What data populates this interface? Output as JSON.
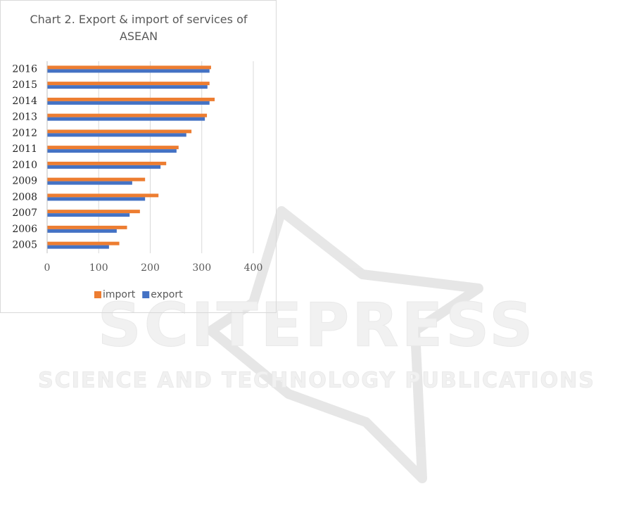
{
  "chart_data": {
    "type": "barh",
    "title": "Chart 2. Export & import of services of ASEAN",
    "categories": [
      "2005",
      "2006",
      "2007",
      "2008",
      "2009",
      "2010",
      "2011",
      "2012",
      "2013",
      "2014",
      "2015",
      "2016"
    ],
    "series": [
      {
        "name": "import",
        "color": "#ed7d31",
        "values": [
          140,
          155,
          180,
          216,
          190,
          231,
          255,
          280,
          310,
          325,
          315,
          318
        ]
      },
      {
        "name": "export",
        "color": "#4472c4",
        "values": [
          120,
          135,
          160,
          190,
          165,
          220,
          251,
          270,
          306,
          315,
          311,
          315
        ]
      }
    ],
    "xlim": [
      0,
      400
    ],
    "xticks": [
      0,
      100,
      200,
      300,
      400
    ],
    "grid": true,
    "legend": "bottom"
  },
  "watermark": {
    "title": "SCITEPRESS",
    "subtitle": "SCIENCE AND TECHNOLOGY PUBLICATIONS"
  }
}
